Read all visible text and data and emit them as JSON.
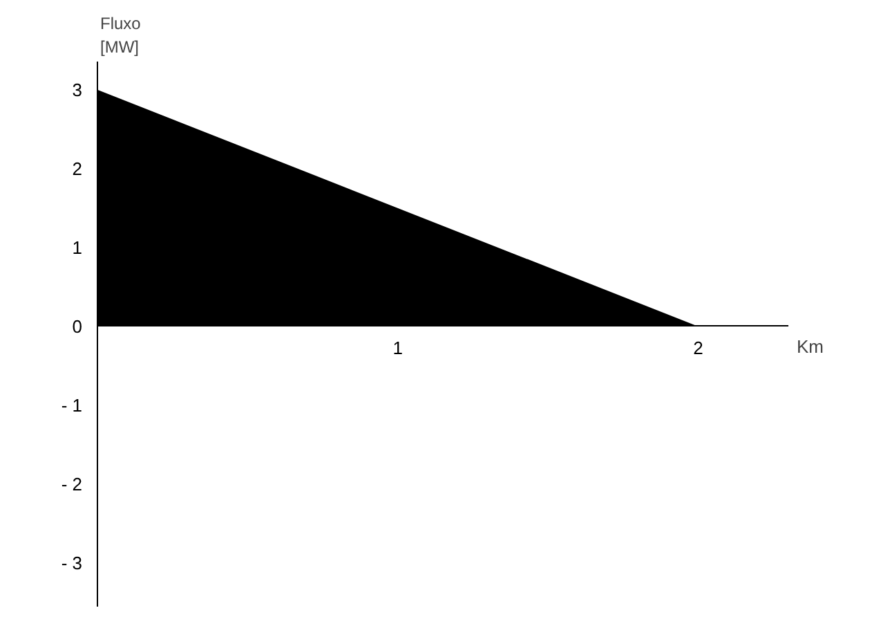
{
  "chart_data": {
    "type": "area",
    "x": [
      0,
      2
    ],
    "series": [
      {
        "color": "#000000",
        "values": [
          3,
          0
        ]
      }
    ],
    "xlabel": "Km",
    "ylabel": "Fluxo\n[MW]",
    "xlim": [
      0,
      2.3
    ],
    "ylim": [
      -3.55,
      3.35
    ],
    "xticks": [
      1,
      2
    ],
    "yticks": [
      3,
      2,
      1,
      0,
      {
        "value": -1,
        "label": "- 1"
      },
      {
        "value": -2,
        "label": "- 2"
      },
      {
        "value": -3,
        "label": "- 3"
      }
    ],
    "grid": false
  }
}
